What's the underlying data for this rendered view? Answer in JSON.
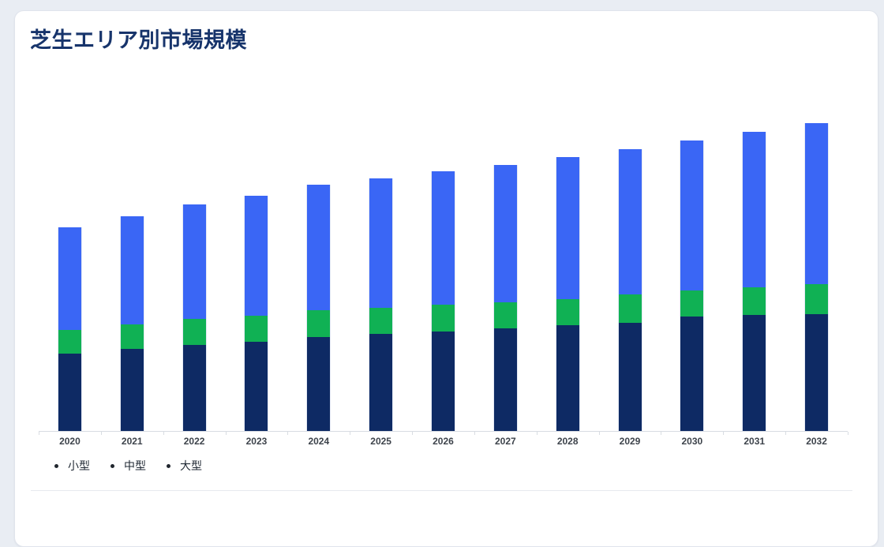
{
  "card": {
    "title": "芝生エリア別市場規模"
  },
  "chart_data": {
    "type": "bar",
    "stacked": true,
    "title": "芝生エリア別市場規模",
    "xlabel": "",
    "ylabel": "",
    "y_axis_visible": false,
    "grid": false,
    "legend_position": "bottom-left",
    "units": "relative (no value axis shown)",
    "categories": [
      "2020",
      "2021",
      "2022",
      "2023",
      "2024",
      "2025",
      "2026",
      "2027",
      "2028",
      "2029",
      "2030",
      "2031",
      "2032"
    ],
    "series": [
      {
        "name": "小型",
        "color": "#0e2a64",
        "values": [
          98,
          104,
          109,
          113,
          119,
          123,
          126,
          130,
          134,
          137,
          145,
          147,
          148
        ]
      },
      {
        "name": "中型",
        "color": "#10b154",
        "values": [
          30,
          31,
          33,
          33,
          34,
          33,
          34,
          33,
          33,
          36,
          33,
          35,
          38
        ]
      },
      {
        "name": "大型",
        "color": "#3a66f5",
        "values": [
          130,
          137,
          145,
          152,
          159,
          164,
          169,
          174,
          180,
          184,
          190,
          197,
          204
        ]
      }
    ],
    "totals": [
      258,
      272,
      287,
      298,
      312,
      320,
      329,
      337,
      347,
      357,
      368,
      379,
      390
    ]
  },
  "legend": {
    "bullet_color": "#20262e",
    "items": [
      "小型",
      "中型",
      "大型"
    ]
  },
  "colors": {
    "page_background": "#e9edf3",
    "card_background": "#ffffff",
    "card_border": "#e0e4ec",
    "title_text": "#17346b",
    "axis_line": "#d8dce2",
    "year_label_text": "#3d434b",
    "legend_text": "#212a35",
    "divider": "#e7e9ee"
  }
}
